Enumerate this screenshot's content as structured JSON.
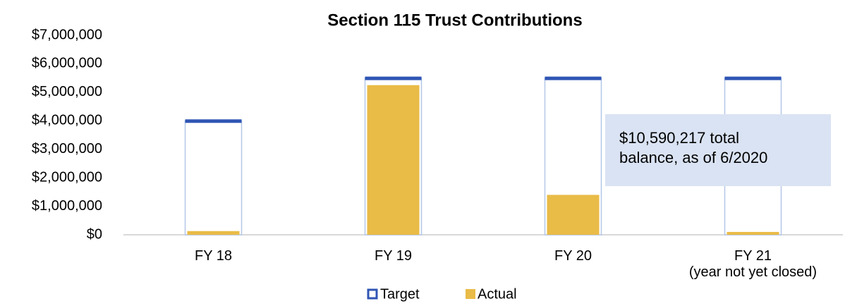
{
  "chart_data": {
    "type": "bar",
    "title": "Section 115 Trust Contributions",
    "categories": [
      "FY 18",
      "FY 19",
      "FY 20",
      "FY 21\n(year not yet closed)"
    ],
    "series": [
      {
        "name": "Target",
        "color": "#2f55b4",
        "values": [
          4000000,
          5500000,
          5500000,
          5500000
        ]
      },
      {
        "name": "Actual",
        "color": "#e9bb47",
        "values": [
          130000,
          5250000,
          1400000,
          100000
        ]
      }
    ],
    "ylim": [
      0,
      7000000
    ],
    "yticks": [
      {
        "value": 0,
        "label": "$0"
      },
      {
        "value": 1000000,
        "label": "$1,000,000"
      },
      {
        "value": 2000000,
        "label": "$2,000,000"
      },
      {
        "value": 3000000,
        "label": "$3,000,000"
      },
      {
        "value": 4000000,
        "label": "$4,000,000"
      },
      {
        "value": 5000000,
        "label": "$5,000,000"
      },
      {
        "value": 6000000,
        "label": "$6,000,000"
      },
      {
        "value": 7000000,
        "label": "$7,000,000"
      }
    ],
    "annotation": "$10,590,217 total\nbalance, as of 6/2020",
    "legend": "bottom"
  }
}
